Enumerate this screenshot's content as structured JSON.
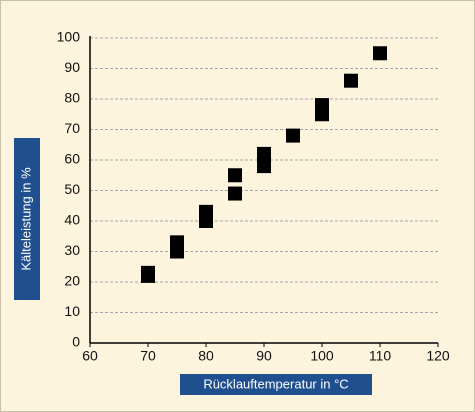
{
  "chart_data": {
    "type": "scatter",
    "xlabel": "Rücklauftemperatur in °C",
    "ylabel": "Kälteleistung in %",
    "x": [
      70,
      70,
      75,
      75,
      80,
      80,
      85,
      85,
      90,
      90,
      95,
      100,
      100,
      105,
      110
    ],
    "values": [
      22,
      23,
      30,
      33,
      40,
      43,
      49,
      55,
      58,
      62,
      68,
      75,
      78,
      86,
      95
    ],
    "color": "#000000",
    "xlim": [
      60,
      120
    ],
    "xticks": [
      60,
      70,
      80,
      90,
      100,
      110,
      120
    ],
    "ylim": [
      0,
      100
    ],
    "yticks": [
      0,
      10,
      20,
      30,
      40,
      50,
      60,
      70,
      80,
      90,
      100
    ],
    "grid": true
  }
}
